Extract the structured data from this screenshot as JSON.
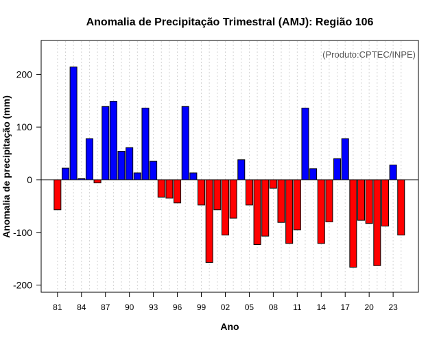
{
  "chart_data": {
    "type": "bar",
    "title": "Anomalia de Precipitação Trimestral (AMJ): Região 106",
    "xlabel": "Ano",
    "ylabel": "Anomalia de precipitação (mm)",
    "credit": "(Produto:CPTEC/INPE)",
    "ylim": [
      -215,
      265
    ],
    "yticks": [
      -200,
      -100,
      0,
      100,
      200
    ],
    "xtick_labels": [
      "81",
      "84",
      "87",
      "90",
      "93",
      "96",
      "99",
      "02",
      "05",
      "08",
      "11",
      "14",
      "17",
      "20",
      "23"
    ],
    "years": [
      1981,
      1982,
      1983,
      1984,
      1985,
      1986,
      1987,
      1988,
      1989,
      1990,
      1991,
      1992,
      1993,
      1994,
      1995,
      1996,
      1997,
      1998,
      1999,
      2000,
      2001,
      2002,
      2003,
      2004,
      2005,
      2006,
      2007,
      2008,
      2009,
      2010,
      2011,
      2012,
      2013,
      2014,
      2015,
      2016,
      2017,
      2018,
      2019,
      2020,
      2021,
      2022,
      2023,
      2024
    ],
    "values": [
      -57,
      22,
      214,
      2,
      78,
      -6,
      139,
      149,
      54,
      61,
      13,
      136,
      35,
      -33,
      -35,
      -44,
      139,
      13,
      -48,
      -157,
      -57,
      -105,
      -73,
      38,
      -48,
      -123,
      -107,
      -16,
      -81,
      -121,
      -95,
      136,
      21,
      -121,
      -80,
      40,
      78,
      -166,
      -77,
      -83,
      -163,
      -88,
      28,
      -105
    ],
    "colors": {
      "positive": "#0000ff",
      "negative": "#ff0000",
      "grid": "#d3d3d3"
    },
    "grid": true
  }
}
